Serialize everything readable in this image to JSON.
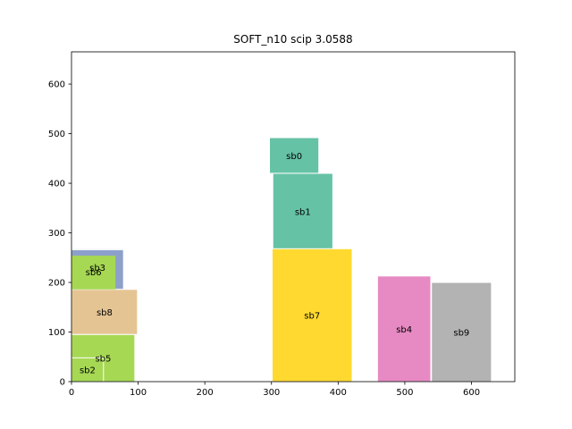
{
  "chart_data": {
    "type": "rectangles",
    "title": "SOFT_n10 scip 3.0588",
    "xlabel": "",
    "ylabel": "",
    "xlim": [
      0,
      665
    ],
    "ylim": [
      0,
      665
    ],
    "xticks": [
      0,
      100,
      200,
      300,
      400,
      500,
      600
    ],
    "yticks": [
      0,
      100,
      200,
      300,
      400,
      500,
      600
    ],
    "grid": false,
    "rectangles": [
      {
        "label": "sb0",
        "x": 297,
        "y": 420,
        "w": 74,
        "h": 72,
        "color": "#66c2a5"
      },
      {
        "label": "sb1",
        "x": 302,
        "y": 266,
        "w": 90,
        "h": 154,
        "color": "#66c2a5"
      },
      {
        "label": "sb3",
        "x": 0,
        "y": 266,
        "w": 78,
        "h": 2,
        "color": "#8da0cb"
      },
      {
        "label": "sb6",
        "x": 0,
        "y": 186,
        "w": 78,
        "h": 80,
        "color": "#8da0cb"
      },
      {
        "label": "sb8",
        "x": 0,
        "y": 95,
        "w": 99,
        "h": 91,
        "color": "#e5c494"
      },
      {
        "label": "sb5",
        "x": 0,
        "y": 0,
        "w": 95,
        "h": 95,
        "color": "#a6d854"
      },
      {
        "label": "sb2",
        "x": 0,
        "y": 0,
        "w": 48,
        "h": 48,
        "color": "#a6d854"
      },
      {
        "label": "sb7",
        "x": 301,
        "y": 0,
        "w": 120,
        "h": 268,
        "color": "#ffd92f"
      },
      {
        "label": "sb4",
        "x": 459,
        "y": 0,
        "w": 80,
        "h": 213,
        "color": "#e78ac3"
      },
      {
        "label": "sb9",
        "x": 540,
        "y": 0,
        "w": 90,
        "h": 200,
        "color": "#b3b3b3"
      }
    ],
    "overlay_label_color": "#a6d854"
  }
}
